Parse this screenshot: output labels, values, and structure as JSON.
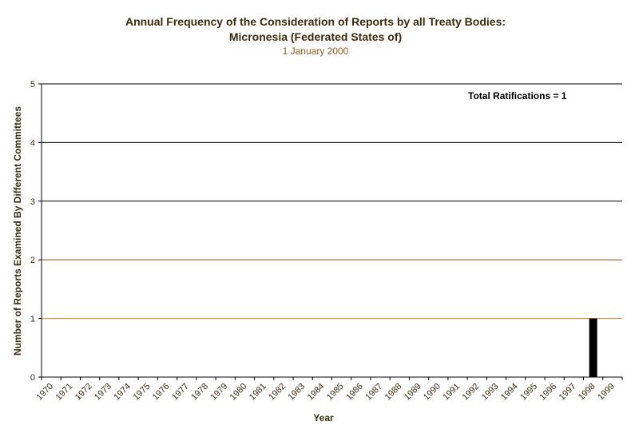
{
  "chart_data": {
    "type": "bar",
    "title": "Annual Frequency of the Consideration of Reports by all Treaty Bodies:",
    "subtitle": "Micronesia (Federated States of)",
    "date": "1 January 2000",
    "xlabel": "Year",
    "ylabel": "Number of Reports Examined By Different Committees",
    "annotation": "Total Ratifications = 1",
    "ylim": [
      0,
      5
    ],
    "yticks": [
      0,
      1,
      2,
      3,
      4,
      5
    ],
    "categories": [
      "1970",
      "1971",
      "1972",
      "1973",
      "1974",
      "1975",
      "1976",
      "1977",
      "1978",
      "1979",
      "1980",
      "1981",
      "1982",
      "1983",
      "1984",
      "1985",
      "1986",
      "1987",
      "1988",
      "1989",
      "1990",
      "1991",
      "1992",
      "1993",
      "1994",
      "1995",
      "1996",
      "1997",
      "1998",
      "1999"
    ],
    "values": [
      0,
      0,
      0,
      0,
      0,
      0,
      0,
      0,
      0,
      0,
      0,
      0,
      0,
      0,
      0,
      0,
      0,
      0,
      0,
      0,
      0,
      0,
      0,
      0,
      0,
      0,
      0,
      0,
      1,
      0
    ],
    "grid": true,
    "bar_color": "#000000",
    "gridline_colors": {
      "1": "#c8791a",
      "2": "#8a4a10",
      "3": "#000000",
      "4": "#000000",
      "5": "#000000"
    }
  }
}
